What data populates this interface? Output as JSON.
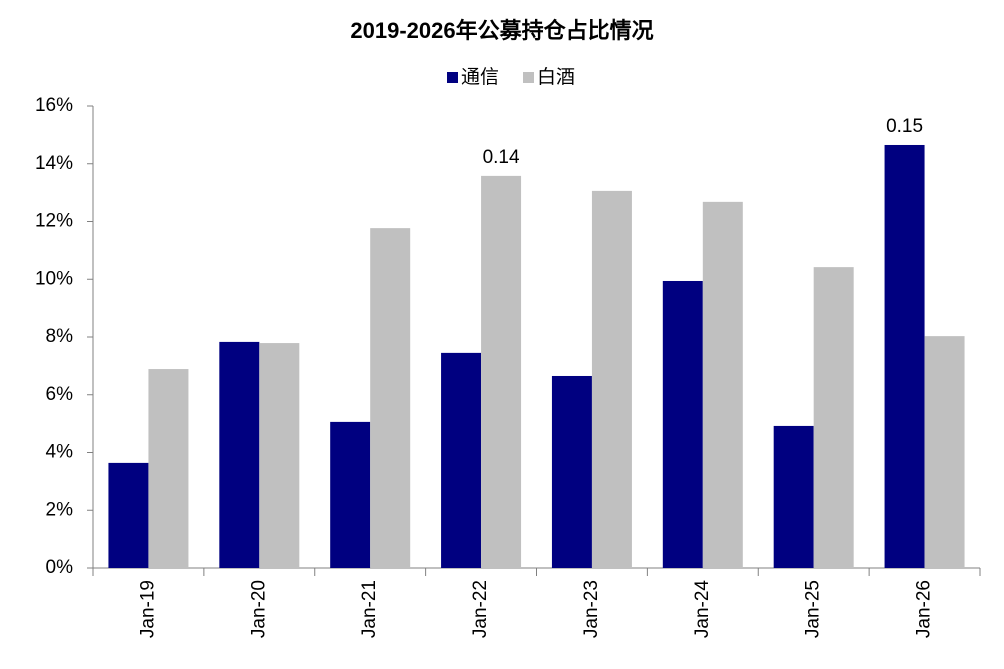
{
  "chart_data": {
    "type": "bar",
    "title": "2019-2026年公募持仓占比情况",
    "categories": [
      "Jan-19",
      "Jan-20",
      "Jan-21",
      "Jan-22",
      "Jan-23",
      "Jan-24",
      "Jan-25",
      "Jan-26"
    ],
    "series": [
      {
        "name": "通信",
        "color": "#000080",
        "values": [
          3.64,
          7.83,
          5.06,
          7.45,
          6.65,
          9.94,
          4.92,
          14.65
        ],
        "value_labels": [
          null,
          null,
          null,
          null,
          null,
          null,
          null,
          "0.15"
        ]
      },
      {
        "name": "白酒",
        "color": "#c0c0c0",
        "values": [
          6.89,
          7.79,
          11.77,
          13.58,
          13.06,
          12.68,
          10.42,
          8.03
        ],
        "value_labels": [
          null,
          null,
          null,
          "0.14",
          null,
          null,
          null,
          null
        ]
      }
    ],
    "ylim": [
      0,
      16
    ],
    "yticks": [
      {
        "value": 0,
        "label": "0%"
      },
      {
        "value": 2,
        "label": "2%"
      },
      {
        "value": 4,
        "label": "4%"
      },
      {
        "value": 6,
        "label": "6%"
      },
      {
        "value": 8,
        "label": "8%"
      },
      {
        "value": 10,
        "label": "10%"
      },
      {
        "value": 12,
        "label": "12%"
      },
      {
        "value": 14,
        "label": "14%"
      },
      {
        "value": 16,
        "label": "16%"
      }
    ],
    "legend": "top"
  }
}
